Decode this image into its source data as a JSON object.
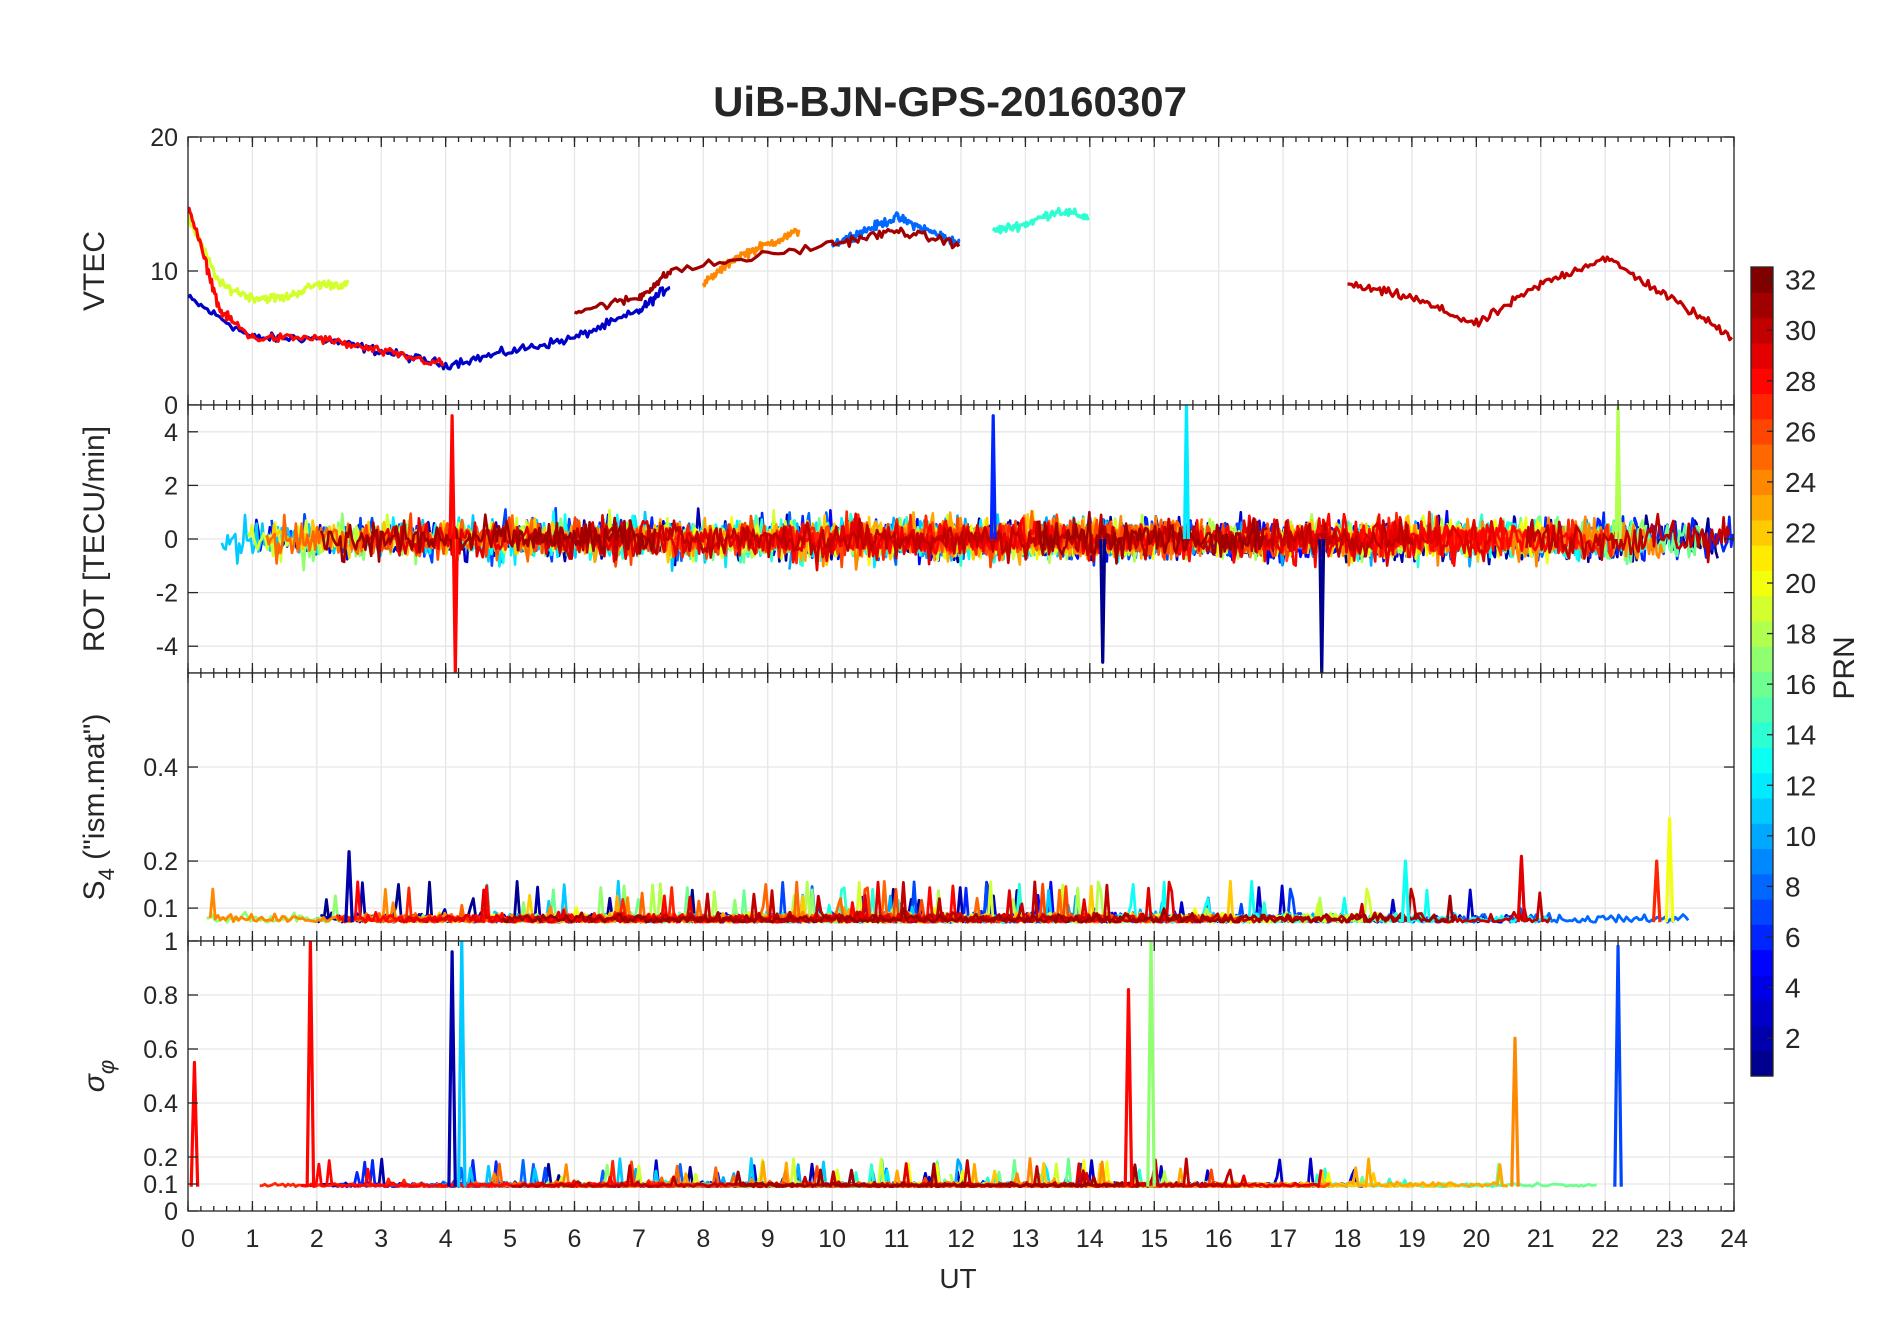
{
  "chart_data": {
    "type": "line",
    "title": "UiB-BJN-GPS-20160307",
    "xlabel": "UT",
    "xlim": [
      0,
      24
    ],
    "xticks": [
      0,
      1,
      2,
      3,
      4,
      5,
      6,
      7,
      8,
      9,
      10,
      11,
      12,
      13,
      14,
      15,
      16,
      17,
      18,
      19,
      20,
      21,
      22,
      23,
      24
    ],
    "colorbar": {
      "label": "PRN",
      "range": [
        1,
        32
      ],
      "ticks": [
        2,
        4,
        6,
        8,
        10,
        12,
        14,
        16,
        18,
        20,
        22,
        24,
        26,
        28,
        30,
        32
      ],
      "colormap": [
        "#00008f",
        "#0000ff",
        "#0080ff",
        "#00ffff",
        "#80ff80",
        "#ffff00",
        "#ff8000",
        "#ff0000",
        "#800000"
      ]
    },
    "panels": [
      {
        "id": "vtec",
        "ylabel": "VTEC",
        "ylim": [
          0,
          20
        ],
        "yticks": [
          0,
          10,
          20
        ],
        "description": "Vertical TEC per PRN, roughly 3-15 TECU",
        "series": [
          {
            "prn": 3,
            "x": [
              0,
              1,
              2,
              3,
              4,
              5,
              6,
              7,
              7.5
            ],
            "y": [
              8,
              5,
              5,
              4,
              3,
              4,
              5,
              7,
              9
            ]
          },
          {
            "prn": 8,
            "x": [
              10,
              10.5,
              11,
              11.5,
              12
            ],
            "y": [
              12,
              13,
              14,
              13,
              12
            ]
          },
          {
            "prn": 14,
            "x": [
              12.5,
              13,
              13.5,
              14
            ],
            "y": [
              13,
              13.5,
              14.5,
              14
            ]
          },
          {
            "prn": 19,
            "x": [
              0,
              0.5,
              1,
              1.5,
              2,
              2.5
            ],
            "y": [
              14,
              9,
              8,
              8,
              9,
              9
            ]
          },
          {
            "prn": 24,
            "x": [
              8,
              8.5,
              9,
              9.5
            ],
            "y": [
              9,
              11,
              12,
              13
            ]
          },
          {
            "prn": 28,
            "x": [
              0,
              0.5,
              1,
              2,
              3,
              4
            ],
            "y": [
              15,
              7,
              5,
              5,
              4,
              3
            ]
          },
          {
            "prn": 30,
            "x": [
              18,
              19,
              20,
              21,
              22,
              23,
              24
            ],
            "y": [
              9,
              8,
              6,
              9,
              11,
              8,
              5
            ]
          },
          {
            "prn": 31,
            "x": [
              6,
              7,
              7.5,
              10,
              11,
              12
            ],
            "y": [
              7,
              8,
              10,
              12,
              13,
              12
            ]
          }
        ]
      },
      {
        "id": "rot",
        "ylabel": "ROT [TECU/min]",
        "ylim": [
          -5,
          5
        ],
        "yticks": [
          -4,
          -2,
          0,
          2,
          4
        ],
        "description": "Rate of TEC, noisy around 0 with spikes to about ±5",
        "spikes": [
          {
            "prn": 28,
            "x": 4.1,
            "y": 4.6
          },
          {
            "prn": 28,
            "x": 4.15,
            "y": -5.0
          },
          {
            "prn": 12,
            "x": 15.5,
            "y": 5.0
          },
          {
            "prn": 1,
            "x": 17.6,
            "y": -5.0
          },
          {
            "prn": 18,
            "x": 22.2,
            "y": 4.9
          },
          {
            "prn": 6,
            "x": 12.5,
            "y": 4.6
          },
          {
            "prn": 1,
            "x": 14.2,
            "y": -4.6
          }
        ]
      },
      {
        "id": "s4",
        "ylabel": "S4 (\"ism.mat\")",
        "ylabel_main": "S",
        "ylabel_sub": "4",
        "ylabel_rest": " (\"ism.mat\")",
        "ylim": [
          0.03,
          0.6
        ],
        "yticks": [
          0.1,
          0.2,
          0.4
        ],
        "description": "Amplitude scintillation index, baseline about 0.05-0.1",
        "peaks": [
          {
            "prn": 2,
            "x": 2.5,
            "y": 0.22
          },
          {
            "prn": 13,
            "x": 18.9,
            "y": 0.2
          },
          {
            "prn": 29,
            "x": 20.7,
            "y": 0.21
          },
          {
            "prn": 20,
            "x": 23.0,
            "y": 0.29
          },
          {
            "prn": 27,
            "x": 22.8,
            "y": 0.2
          }
        ]
      },
      {
        "id": "sigma_phi",
        "ylabel": "σφ",
        "ylim": [
          0,
          1
        ],
        "yticks": [
          0,
          0.1,
          0.2,
          0.4,
          0.6,
          0.8,
          1
        ],
        "description": "Phase scintillation index, baseline about 0.1 with spikes",
        "peaks": [
          {
            "prn": 28,
            "x": 1.9,
            "y": 1.0
          },
          {
            "prn": 2,
            "x": 4.1,
            "y": 0.96
          },
          {
            "prn": 11,
            "x": 4.25,
            "y": 1.0
          },
          {
            "prn": 28,
            "x": 14.6,
            "y": 0.82
          },
          {
            "prn": 17,
            "x": 14.95,
            "y": 1.0
          },
          {
            "prn": 24,
            "x": 20.6,
            "y": 0.64
          },
          {
            "prn": 7,
            "x": 22.2,
            "y": 0.98
          },
          {
            "prn": 28,
            "x": 0.1,
            "y": 0.55
          }
        ]
      }
    ]
  }
}
